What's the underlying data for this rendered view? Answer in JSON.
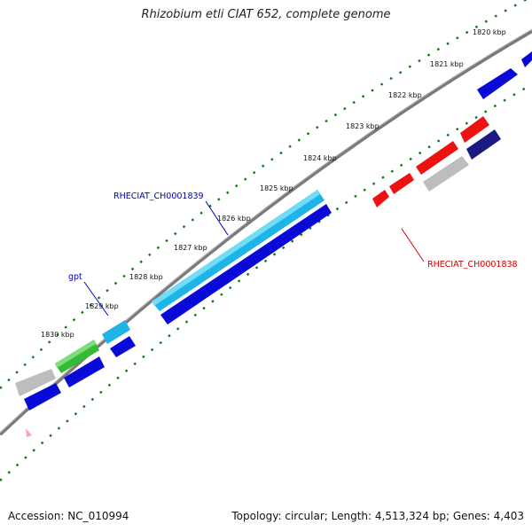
{
  "title": "Rhizobium etli CIAT 652, complete genome",
  "footer": {
    "accession": "Accession: NC_010994",
    "summary": "Topology: circular; Length: 4,513,324 bp; Genes: 4,403"
  },
  "kbp_labels": [
    "1820 kbp",
    "1821 kbp",
    "1822 kbp",
    "1823 kbp",
    "1824 kbp",
    "1825 kbp",
    "1826 kbp",
    "1827 kbp",
    "1828 kbp",
    "1829 kbp",
    "1830 kbp"
  ],
  "gene_labels": {
    "rheciat_1839": "RHECIAT_CH0001839",
    "gpt": "gpt",
    "rheciat_1838": "RHECIAT_CH0001838"
  },
  "colors": {
    "dark_blue": "#0a0ad8",
    "navy": "#1a1a80",
    "cyan": "#1eb4e6",
    "green": "#33bb33",
    "red": "#ee1111",
    "gray": "#bdbdbd",
    "axis": "#888888",
    "ticks": "#0a7a0a",
    "label_blue": "#0000bb",
    "label_red": "#cc0000"
  }
}
